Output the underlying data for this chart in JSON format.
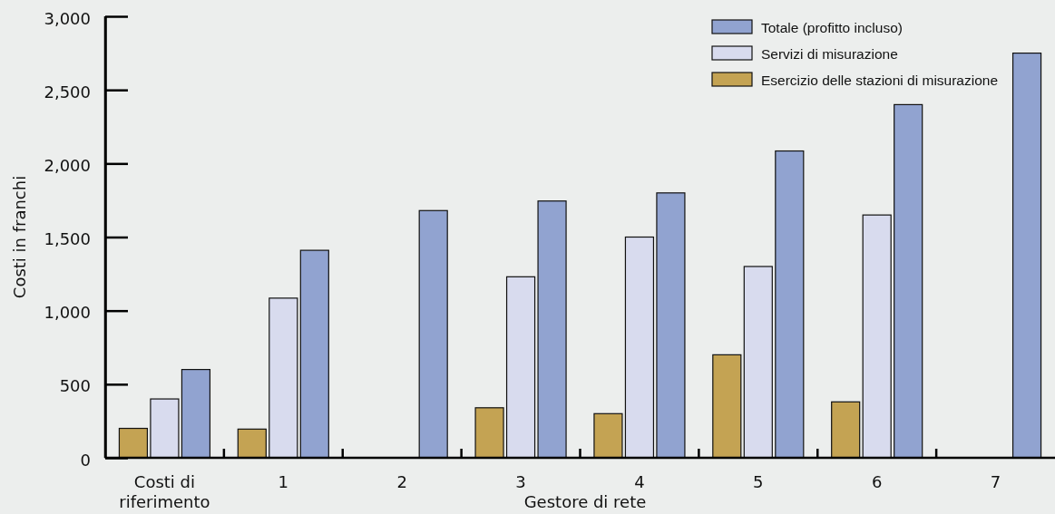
{
  "chart_data": {
    "type": "bar",
    "xlabel": "Gestore di rete",
    "ylabel": "Costi in franchi",
    "categories": [
      "Costi di riferimento",
      "1",
      "2",
      "3",
      "4",
      "5",
      "6",
      "7"
    ],
    "series": [
      {
        "name": "Esercizio delle stazioni di misurazione",
        "color": "#c4a353",
        "values": [
          200,
          195,
          null,
          340,
          300,
          700,
          380,
          null
        ]
      },
      {
        "name": "Servizi di misurazione",
        "color": "#d8dbee",
        "values": [
          400,
          1085,
          null,
          1230,
          1500,
          1300,
          1650,
          null
        ]
      },
      {
        "name": "Totale (profitto incluso)",
        "color": "#91a3d0",
        "values": [
          600,
          1410,
          1680,
          1745,
          1800,
          2085,
          2400,
          2750
        ]
      }
    ],
    "ylim": [
      0,
      3000
    ],
    "yticks": [
      0,
      {
        "value": 500,
        "label": "500"
      },
      {
        "value": 1000,
        "label": "1,000"
      },
      {
        "value": 1500,
        "label": "1,500"
      },
      {
        "value": 2000,
        "label": "2,000"
      },
      {
        "value": 2500,
        "label": "2,500"
      },
      {
        "value": 3000,
        "label": "3,000"
      }
    ],
    "legend": "top right",
    "grid": false
  }
}
